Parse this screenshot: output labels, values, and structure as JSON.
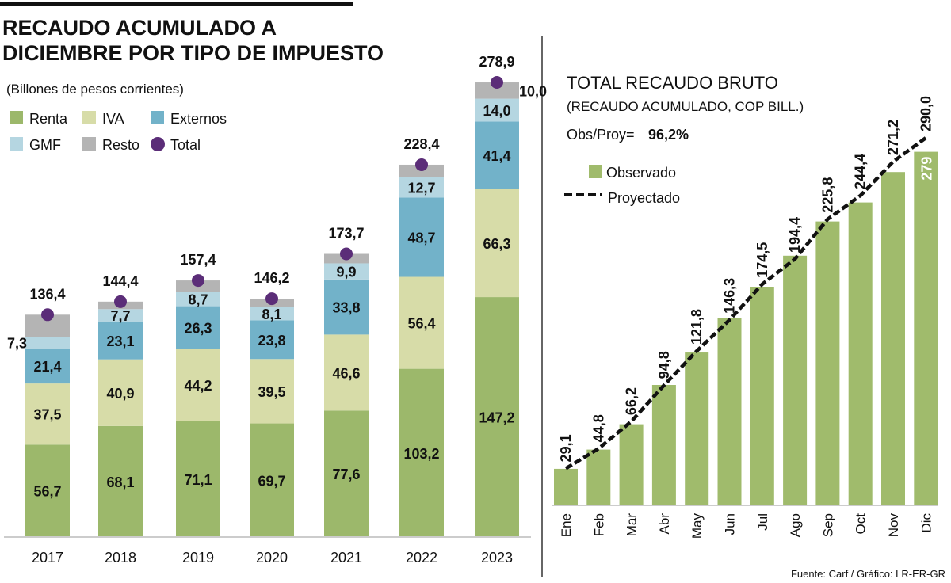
{
  "chart_data": [
    {
      "type": "bar",
      "stacked": true,
      "title": "RECAUDO ACUMULADO A DICIEMBRE POR TIPO DE IMPUESTO",
      "subtitle": "(Billones de pesos corrientes)",
      "categories": [
        "2017",
        "2018",
        "2019",
        "2020",
        "2021",
        "2022",
        "2023"
      ],
      "series": [
        {
          "name": "Renta",
          "color": "#9cb86b",
          "values": [
            56.7,
            68.1,
            71.1,
            69.7,
            77.6,
            103.2,
            147.2
          ],
          "labeled": [
            true,
            true,
            true,
            true,
            true,
            true,
            true
          ]
        },
        {
          "name": "IVA",
          "color": "#d7dca8",
          "values": [
            37.5,
            40.9,
            44.2,
            39.5,
            46.6,
            56.4,
            66.3
          ],
          "labeled": [
            true,
            true,
            true,
            true,
            true,
            true,
            true
          ]
        },
        {
          "name": "Externos",
          "color": "#72b2c9",
          "values": [
            21.4,
            23.1,
            26.3,
            23.8,
            33.8,
            48.7,
            41.4
          ],
          "labeled": [
            true,
            true,
            true,
            true,
            true,
            true,
            true
          ]
        },
        {
          "name": "GMF",
          "color": "#b5d6e1",
          "values": [
            7.3,
            7.7,
            8.7,
            8.1,
            9.9,
            12.7,
            14.0
          ],
          "labeled": [
            true,
            true,
            true,
            true,
            true,
            true,
            true
          ]
        },
        {
          "name": "Resto",
          "color": "#b4b4b4",
          "values": [
            13.5,
            4.6,
            7.1,
            5.1,
            5.8,
            7.4,
            10.0
          ],
          "labeled": [
            false,
            false,
            false,
            false,
            false,
            false,
            true
          ]
        }
      ],
      "total": {
        "name": "Total",
        "color": "#5b2d78",
        "values": [
          136.4,
          144.4,
          157.4,
          146.2,
          173.7,
          228.4,
          278.9
        ]
      },
      "legend": "top-left",
      "grid": false
    },
    {
      "type": "bar+line",
      "title": "TOTAL RECAUDO BRUTO",
      "subtitle": "(RECAUDO ACUMULADO, COP BILL.)",
      "ratio_label": "Obs/Proy=",
      "ratio_value": "96,2%",
      "categories": [
        "Ene",
        "Feb",
        "Mar",
        "Abr",
        "May",
        "Jun",
        "Jul",
        "Ago",
        "Sep",
        "Oct",
        "Nov",
        "Dic"
      ],
      "series": [
        {
          "name": "Observado",
          "type": "bar",
          "color": "#a0bb6c",
          "values": [
            28.8,
            44,
            64,
            95,
            120.6,
            147.5,
            172.5,
            197,
            224,
            239,
            263,
            279
          ],
          "data_label": "279"
        },
        {
          "name": "Proyectado",
          "type": "line",
          "style": "dashed",
          "color": "#000000",
          "values": [
            29.1,
            44.8,
            66.2,
            94.8,
            121.8,
            146.3,
            174.5,
            194.4,
            225.8,
            244.4,
            271.2,
            290.0
          ]
        }
      ],
      "legend": "top-left",
      "grid": false
    }
  ],
  "source": "Fuente: Carf / Gráfico: LR-ER-GR"
}
